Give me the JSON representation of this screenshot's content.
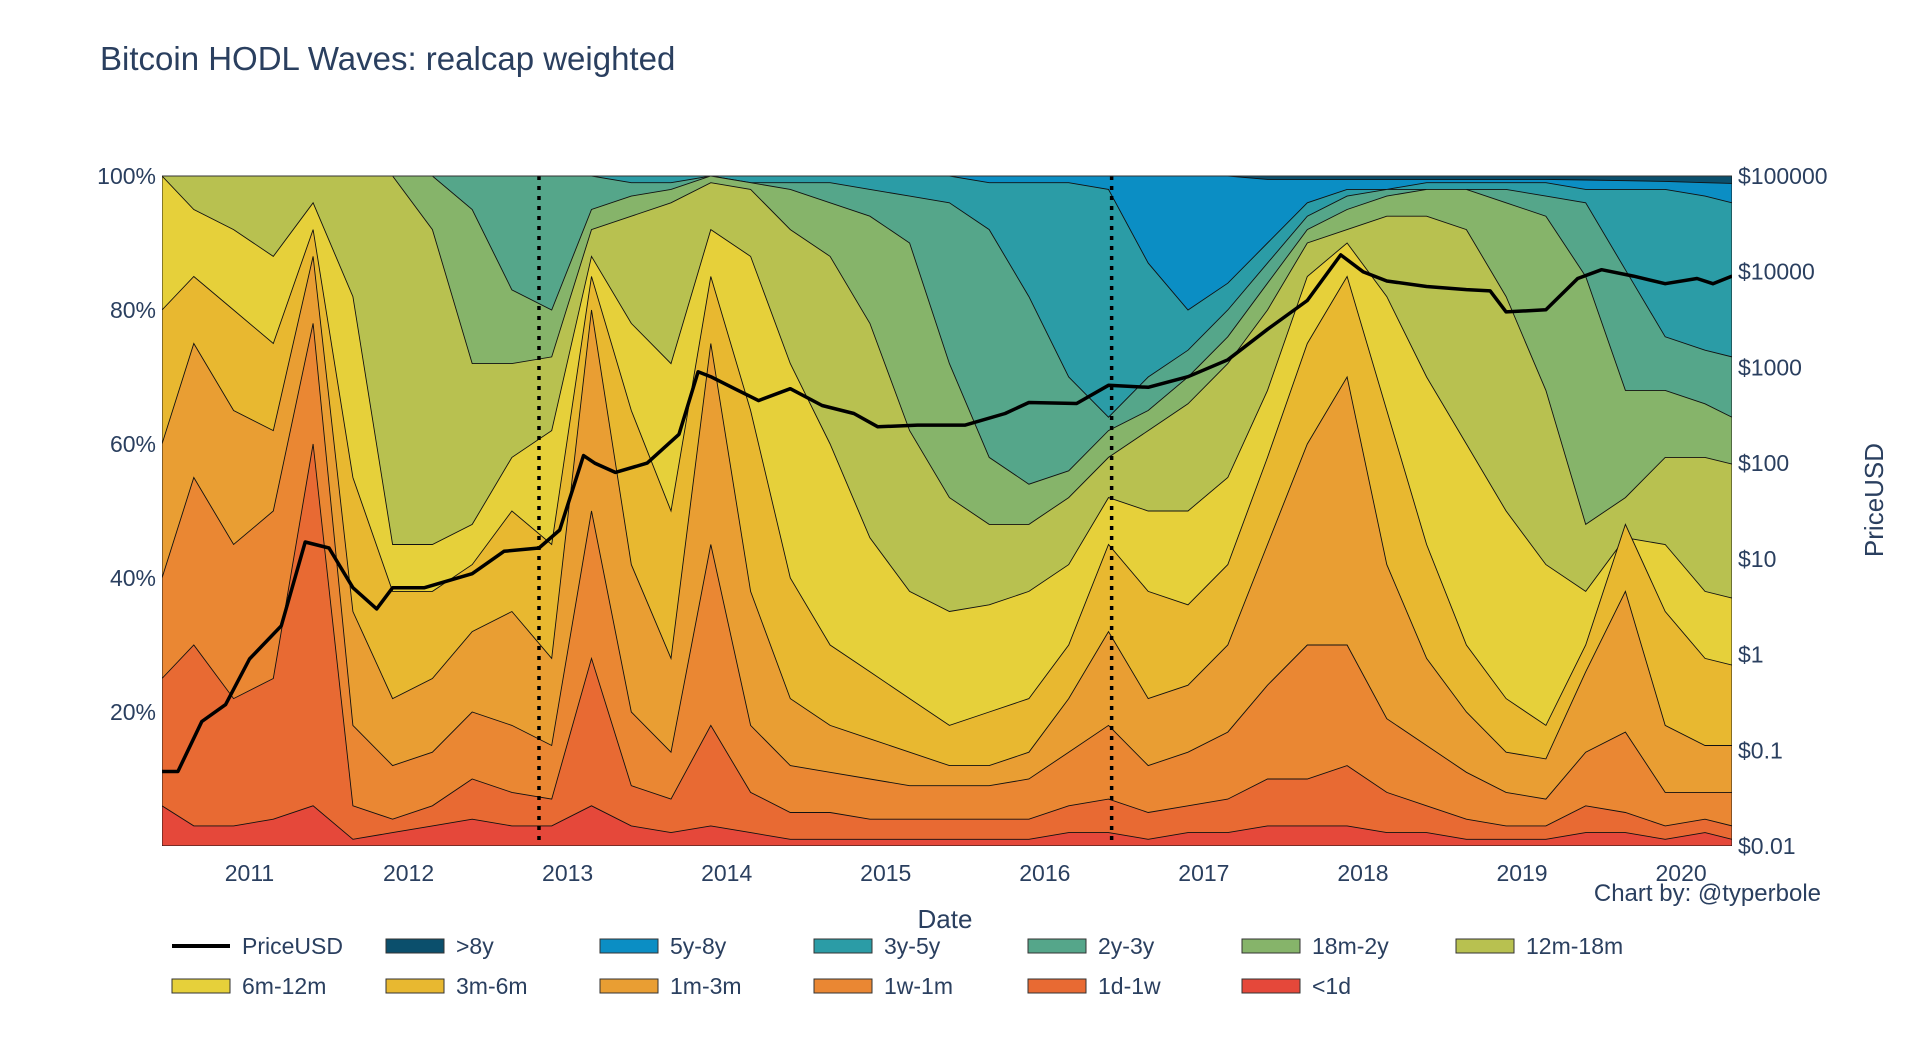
{
  "chart_data": {
    "type": "area",
    "title": "Bitcoin HODL Waves: realcap weighted",
    "credit": "Chart by: @typerbole",
    "xlabel": "Date",
    "ylabel_left": "",
    "ylabel_right": "PriceUSD",
    "x_ticks": [
      "2011",
      "2012",
      "2013",
      "2014",
      "2015",
      "2016",
      "2017",
      "2018",
      "2019",
      "2020"
    ],
    "y_left_ticks": [
      "20%",
      "40%",
      "60%",
      "80%",
      "100%"
    ],
    "y_right_ticks": [
      "$0.01",
      "$0.1",
      "$1",
      "$10",
      "$100",
      "$1000",
      "$10000",
      "$100000"
    ],
    "x_range": [
      2010.55,
      2020.42
    ],
    "y_left_range": [
      0,
      100
    ],
    "y_right_range_log10": [
      -2,
      5
    ],
    "stacking": "percent, bottom band = youngest coins (<1d)",
    "legend_position": "bottom",
    "vlines": [
      2012.92,
      2016.52
    ],
    "legend": [
      {
        "name": "PriceUSD",
        "color": "#000000",
        "kind": "line"
      },
      {
        "name": ">8y",
        "color": "#0b4f6c",
        "kind": "band"
      },
      {
        "name": "5y-8y",
        "color": "#0b8ec4",
        "kind": "band"
      },
      {
        "name": "3y-5y",
        "color": "#2b9ca6",
        "kind": "band"
      },
      {
        "name": "2y-3y",
        "color": "#55a68a",
        "kind": "band"
      },
      {
        "name": "18m-2y",
        "color": "#86b46a",
        "kind": "band"
      },
      {
        "name": "12m-18m",
        "color": "#b8c150",
        "kind": "band"
      },
      {
        "name": "6m-12m",
        "color": "#e6d03a",
        "kind": "band"
      },
      {
        "name": "3m-6m",
        "color": "#e8b830",
        "kind": "band"
      },
      {
        "name": "1m-3m",
        "color": "#e99e33",
        "kind": "band"
      },
      {
        "name": "1w-1m",
        "color": "#ea8733",
        "kind": "band"
      },
      {
        "name": "1d-1w",
        "color": "#e86a33",
        "kind": "band"
      },
      {
        "name": "<1d",
        "color": "#e5483a",
        "kind": "band"
      }
    ],
    "dates": [
      2010.55,
      2010.75,
      2011.0,
      2011.25,
      2011.5,
      2011.75,
      2012.0,
      2012.25,
      2012.5,
      2012.75,
      2013.0,
      2013.25,
      2013.5,
      2013.75,
      2014.0,
      2014.25,
      2014.5,
      2014.75,
      2015.0,
      2015.25,
      2015.5,
      2015.75,
      2016.0,
      2016.25,
      2016.5,
      2016.75,
      2017.0,
      2017.25,
      2017.5,
      2017.75,
      2018.0,
      2018.25,
      2018.5,
      2018.75,
      2019.0,
      2019.25,
      2019.5,
      2019.75,
      2020.0,
      2020.25,
      2020.42
    ],
    "cumulative_boundaries_percent": [
      {
        "upper_of": "<1d",
        "values": [
          6,
          3,
          3,
          4,
          6,
          1,
          2,
          3,
          4,
          3,
          3,
          6,
          3,
          2,
          3,
          2,
          1,
          1,
          1,
          1,
          1,
          1,
          1,
          2,
          2,
          1,
          2,
          2,
          3,
          3,
          3,
          2,
          2,
          1,
          1,
          1,
          2,
          2,
          1,
          2,
          1
        ]
      },
      {
        "upper_of": "1d-1w",
        "values": [
          25,
          30,
          22,
          25,
          60,
          6,
          4,
          6,
          10,
          8,
          7,
          28,
          9,
          7,
          18,
          8,
          5,
          5,
          4,
          4,
          4,
          4,
          4,
          6,
          7,
          5,
          6,
          7,
          10,
          10,
          12,
          8,
          6,
          4,
          3,
          3,
          6,
          5,
          3,
          4,
          3
        ]
      },
      {
        "upper_of": "1w-1m",
        "values": [
          40,
          55,
          45,
          50,
          78,
          18,
          12,
          14,
          20,
          18,
          15,
          50,
          20,
          14,
          45,
          18,
          12,
          11,
          10,
          9,
          9,
          9,
          10,
          14,
          18,
          12,
          14,
          17,
          24,
          30,
          30,
          19,
          15,
          11,
          8,
          7,
          14,
          17,
          8,
          8,
          8
        ]
      },
      {
        "upper_of": "1m-3m",
        "values": [
          60,
          75,
          65,
          62,
          88,
          35,
          22,
          25,
          32,
          35,
          28,
          80,
          42,
          28,
          75,
          38,
          22,
          18,
          16,
          14,
          12,
          12,
          14,
          22,
          32,
          22,
          24,
          30,
          45,
          60,
          70,
          42,
          28,
          20,
          14,
          13,
          26,
          38,
          18,
          15,
          15
        ]
      },
      {
        "upper_of": "3m-6m",
        "values": [
          80,
          85,
          80,
          75,
          92,
          55,
          38,
          38,
          42,
          50,
          45,
          85,
          65,
          50,
          85,
          65,
          40,
          30,
          26,
          22,
          18,
          20,
          22,
          30,
          45,
          38,
          36,
          42,
          58,
          75,
          85,
          65,
          45,
          30,
          22,
          18,
          30,
          48,
          35,
          28,
          27
        ]
      },
      {
        "upper_of": "6m-12m",
        "values": [
          100,
          95,
          92,
          88,
          96,
          82,
          45,
          45,
          48,
          58,
          62,
          88,
          78,
          72,
          92,
          88,
          72,
          60,
          46,
          38,
          35,
          36,
          38,
          42,
          52,
          50,
          50,
          55,
          68,
          85,
          90,
          82,
          70,
          60,
          50,
          42,
          38,
          46,
          45,
          38,
          37
        ]
      },
      {
        "upper_of": "12m-18m",
        "values": [
          100,
          100,
          100,
          100,
          100,
          100,
          100,
          92,
          72,
          72,
          73,
          92,
          94,
          96,
          99,
          98,
          92,
          88,
          78,
          62,
          52,
          48,
          48,
          52,
          58,
          62,
          66,
          72,
          80,
          90,
          92,
          94,
          94,
          92,
          82,
          68,
          48,
          52,
          58,
          58,
          57
        ]
      },
      {
        "upper_of": "18m-2y",
        "values": [
          100,
          100,
          100,
          100,
          100,
          100,
          100,
          100,
          95,
          83,
          80,
          95,
          97,
          98,
          100,
          99,
          98,
          96,
          94,
          90,
          72,
          58,
          54,
          56,
          62,
          65,
          70,
          76,
          84,
          92,
          95,
          97,
          98,
          98,
          96,
          94,
          85,
          68,
          68,
          66,
          64
        ]
      },
      {
        "upper_of": "2y-3y",
        "values": [
          100,
          100,
          100,
          100,
          100,
          100,
          100,
          100,
          100,
          100,
          100,
          100,
          99,
          99,
          100,
          99,
          99,
          99,
          98,
          97,
          96,
          92,
          82,
          70,
          64,
          70,
          74,
          80,
          87,
          94,
          97,
          98,
          98,
          98,
          98,
          97,
          96,
          86,
          76,
          74,
          73
        ]
      },
      {
        "upper_of": "3y-5y",
        "values": [
          100,
          100,
          100,
          100,
          100,
          100,
          100,
          100,
          100,
          100,
          100,
          100,
          100,
          100,
          100,
          100,
          100,
          100,
          100,
          100,
          100,
          99,
          99,
          99,
          98,
          87,
          80,
          84,
          90,
          96,
          98,
          98,
          99,
          99,
          99,
          99,
          98,
          98,
          98,
          97,
          96
        ]
      },
      {
        "upper_of": "5y-8y",
        "values": [
          100,
          100,
          100,
          100,
          100,
          100,
          100,
          100,
          100,
          100,
          100,
          100,
          100,
          100,
          100,
          100,
          100,
          100,
          100,
          100,
          100,
          100,
          100,
          100,
          100,
          100,
          100,
          100,
          99.5,
          99.5,
          99.5,
          99.5,
          99.5,
          99.5,
          99.5,
          99.5,
          99.4,
          99.3,
          99.2,
          99.0,
          98.9
        ]
      },
      {
        "upper_of": ">8y",
        "values": [
          100,
          100,
          100,
          100,
          100,
          100,
          100,
          100,
          100,
          100,
          100,
          100,
          100,
          100,
          100,
          100,
          100,
          100,
          100,
          100,
          100,
          100,
          100,
          100,
          100,
          100,
          100,
          100,
          100,
          100,
          100,
          100,
          100,
          100,
          100,
          100,
          100,
          100,
          100,
          100,
          100
        ]
      }
    ],
    "price_series": {
      "name": "PriceUSD",
      "dates": [
        2010.55,
        2010.65,
        2010.8,
        2010.95,
        2011.1,
        2011.3,
        2011.45,
        2011.6,
        2011.75,
        2011.9,
        2012.0,
        2012.2,
        2012.5,
        2012.7,
        2012.92,
        2013.05,
        2013.2,
        2013.27,
        2013.4,
        2013.6,
        2013.8,
        2013.92,
        2014.0,
        2014.15,
        2014.3,
        2014.5,
        2014.7,
        2014.9,
        2015.05,
        2015.3,
        2015.6,
        2015.85,
        2016.0,
        2016.3,
        2016.5,
        2016.75,
        2017.0,
        2017.25,
        2017.5,
        2017.75,
        2017.96,
        2018.1,
        2018.25,
        2018.5,
        2018.75,
        2018.9,
        2019.0,
        2019.25,
        2019.45,
        2019.6,
        2019.8,
        2020.0,
        2020.2,
        2020.3,
        2020.42
      ],
      "values": [
        0.06,
        0.06,
        0.2,
        0.3,
        0.9,
        2,
        15,
        13,
        5,
        3,
        5,
        5,
        7,
        12,
        13,
        20,
        120,
        100,
        80,
        100,
        200,
        900,
        800,
        600,
        450,
        600,
        400,
        330,
        240,
        250,
        250,
        330,
        430,
        420,
        650,
        620,
        800,
        1200,
        2500,
        5000,
        15000,
        10000,
        8000,
        7000,
        6500,
        6300,
        3800,
        4000,
        8500,
        10500,
        9000,
        7500,
        8500,
        7500,
        9000
      ]
    }
  }
}
